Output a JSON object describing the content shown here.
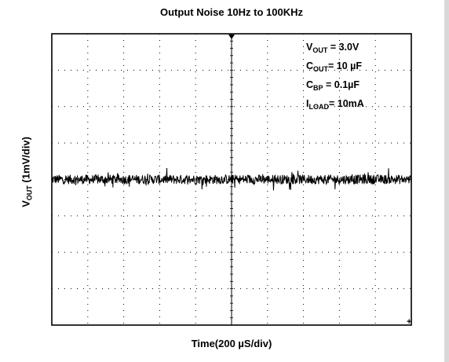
{
  "chart_data": {
    "type": "line",
    "title": "Output Noise 10Hz to 100KHz",
    "xlabel": "Time(200 µS/div)",
    "ylabel": {
      "prefix": "V",
      "sub": "OUT",
      "suffix": " (1mV/div)"
    },
    "divisions": {
      "x": 10,
      "y": 8
    },
    "xlim": [
      0,
      10
    ],
    "ylim": [
      -4,
      4
    ],
    "grid": true,
    "grid_style": "dotted",
    "legend_position": "top-right",
    "conditions": [
      {
        "prefix": "V",
        "sub": "OUT",
        "suffix": " = 3.0V"
      },
      {
        "prefix": "C",
        "sub": "OUT",
        "suffix": "= 10 µF"
      },
      {
        "prefix": "C",
        "sub": "BP",
        "suffix": " = 0.1µF"
      },
      {
        "prefix": "I",
        "sub": "LOAD",
        "suffix": "= 10mA"
      }
    ],
    "series": [
      {
        "description": "output noise trace",
        "center_div": 0.0,
        "peak_to_peak_div": 0.35,
        "color": "#000000"
      }
    ]
  }
}
